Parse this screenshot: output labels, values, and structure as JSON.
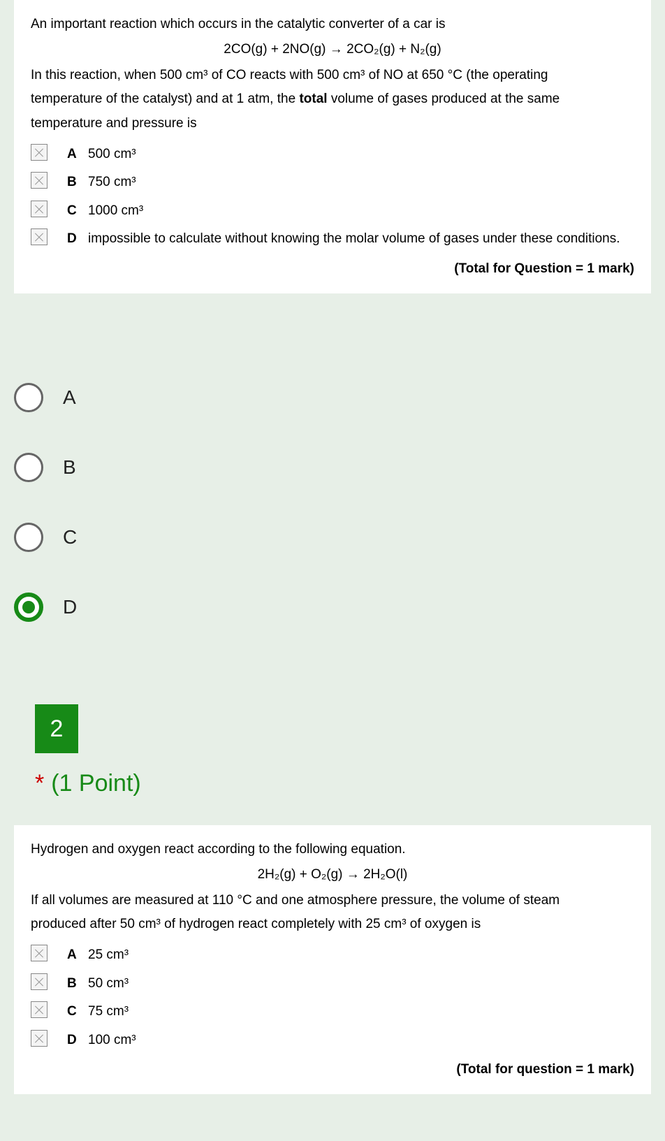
{
  "q1": {
    "intro": "An important reaction which occurs in the catalytic converter of a car is",
    "equation": "2CO(g) + 2NO(g) → 2CO₂(g) + N₂(g)",
    "body1": "In this reaction, when 500 cm³ of CO reacts with 500 cm³ of NO at 650 °C (the operating",
    "body2": "temperature of the catalyst) and at 1 atm, the ",
    "body_bold": "total",
    "body3": " volume of gases produced at the same",
    "body4": "temperature and pressure is",
    "opts": {
      "A": "500 cm³",
      "B": "750 cm³",
      "C": "1000 cm³",
      "D": "impossible to calculate without knowing the molar volume of gases under these conditions."
    },
    "total": "(Total for Question = 1 mark)"
  },
  "answers": {
    "labels": [
      "A",
      "B",
      "C",
      "D"
    ],
    "selected": "D"
  },
  "q2": {
    "number": "2",
    "points": "(1 Point)",
    "intro": "Hydrogen and oxygen react according to the following equation.",
    "equation": "2H₂(g) + O₂(g) → 2H₂O(l)",
    "body1": "If all volumes are measured at 110 °C and one atmosphere pressure, the volume of steam",
    "body2": "produced after 50 cm³ of hydrogen react completely with 25 cm³ of oxygen is",
    "opts": {
      "A": "25 cm³",
      "B": "50 cm³",
      "C": "75 cm³",
      "D": "100 cm³"
    },
    "total": "(Total for question = 1 mark)"
  },
  "colors": {
    "page_bg": "#e7efe7",
    "card_bg": "#ffffff",
    "accent_green": "#178a17",
    "required_star": "#c00",
    "text": "#000000",
    "radio_border": "#666666"
  }
}
